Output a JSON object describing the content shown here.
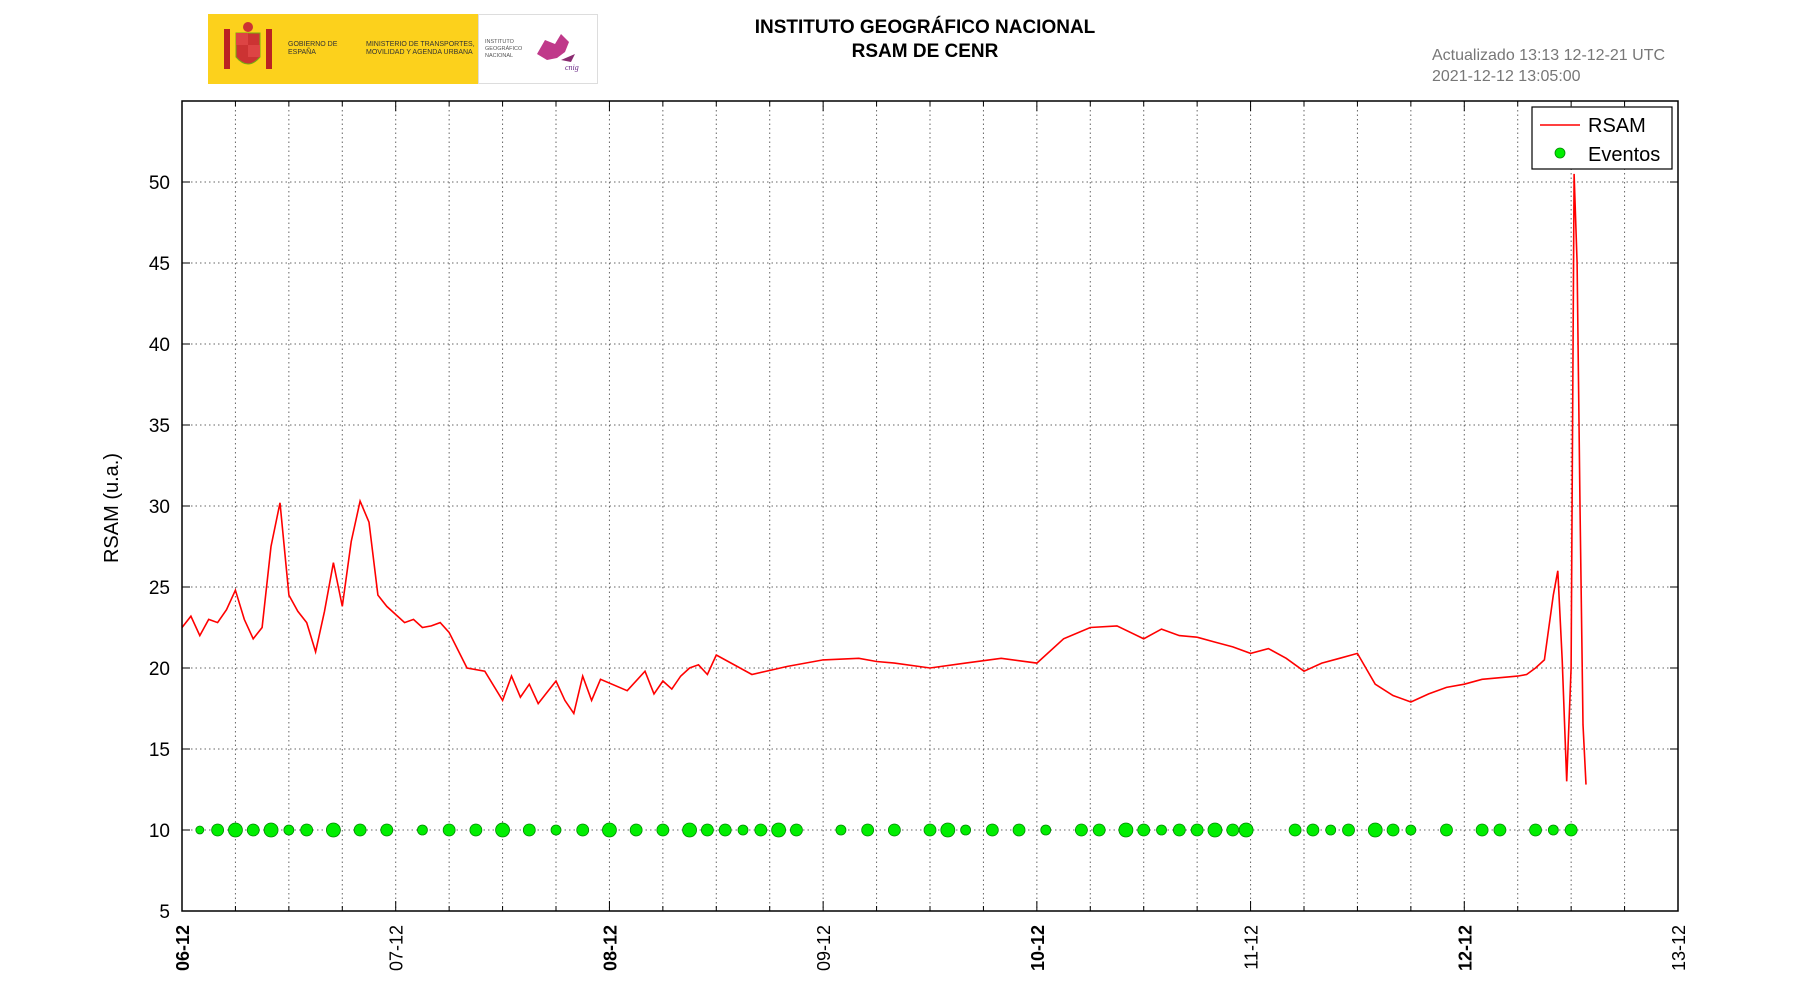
{
  "header": {
    "title_line1": "INSTITUTO GEOGRÁFICO NACIONAL",
    "title_line2": "RSAM DE CENR",
    "updated": "Actualizado 13:13 12-12-21 UTC",
    "timestamp": "2021-12-12 13:05:00"
  },
  "logos": {
    "gobierno": "GOBIERNO DE ESPAÑA",
    "ministerio": "MINISTERIO DE TRANSPORTES, MOVILIDAD Y AGENDA URBANA",
    "ign": "INSTITUTO GEOGRÁFICO NACIONAL",
    "ign_mark": "cnig"
  },
  "chart_data": {
    "type": "line",
    "ylabel": "RSAM (u.a.)",
    "ylim": [
      5,
      55
    ],
    "yticks": [
      5,
      10,
      15,
      20,
      25,
      30,
      35,
      40,
      45,
      50
    ],
    "xlim": [
      "2021-12-06T00:00",
      "2021-12-13T00:00"
    ],
    "xticks": [
      "06-12",
      "07-12",
      "08-12",
      "09-12",
      "10-12",
      "11-12",
      "12-12",
      "13-12"
    ],
    "xticks_bold": [
      true,
      false,
      true,
      false,
      true,
      false,
      true,
      false
    ],
    "grid": true,
    "legend_position": "top-right",
    "colors": {
      "rsam": "#ff0000",
      "eventos": "#00ee00",
      "eventos_edge": "#008800"
    },
    "series": [
      {
        "name": "RSAM",
        "x": [
          "2021-12-06T00:00",
          "2021-12-06T01:00",
          "2021-12-06T02:00",
          "2021-12-06T03:00",
          "2021-12-06T04:00",
          "2021-12-06T05:00",
          "2021-12-06T06:00",
          "2021-12-06T07:00",
          "2021-12-06T08:00",
          "2021-12-06T09:00",
          "2021-12-06T10:00",
          "2021-12-06T11:00",
          "2021-12-06T12:00",
          "2021-12-06T13:00",
          "2021-12-06T14:00",
          "2021-12-06T15:00",
          "2021-12-06T16:00",
          "2021-12-06T17:00",
          "2021-12-06T18:00",
          "2021-12-06T19:00",
          "2021-12-06T20:00",
          "2021-12-06T21:00",
          "2021-12-06T22:00",
          "2021-12-06T23:00",
          "2021-12-07T01:00",
          "2021-12-07T02:00",
          "2021-12-07T03:00",
          "2021-12-07T04:00",
          "2021-12-07T05:00",
          "2021-12-07T06:00",
          "2021-12-07T08:00",
          "2021-12-07T10:00",
          "2021-12-07T12:00",
          "2021-12-07T13:00",
          "2021-12-07T14:00",
          "2021-12-07T15:00",
          "2021-12-07T16:00",
          "2021-12-07T17:00",
          "2021-12-07T18:00",
          "2021-12-07T19:00",
          "2021-12-07T20:00",
          "2021-12-07T21:00",
          "2021-12-07T22:00",
          "2021-12-07T23:00",
          "2021-12-08T02:00",
          "2021-12-08T04:00",
          "2021-12-08T05:00",
          "2021-12-08T06:00",
          "2021-12-08T07:00",
          "2021-12-08T08:00",
          "2021-12-08T09:00",
          "2021-12-08T10:00",
          "2021-12-08T11:00",
          "2021-12-08T12:00",
          "2021-12-08T16:00",
          "2021-12-08T20:00",
          "2021-12-09T00:00",
          "2021-12-09T04:00",
          "2021-12-09T06:00",
          "2021-12-09T08:00",
          "2021-12-09T12:00",
          "2021-12-09T16:00",
          "2021-12-09T20:00",
          "2021-12-10T00:00",
          "2021-12-10T03:00",
          "2021-12-10T06:00",
          "2021-12-10T09:00",
          "2021-12-10T12:00",
          "2021-12-10T14:00",
          "2021-12-10T16:00",
          "2021-12-10T18:00",
          "2021-12-10T20:00",
          "2021-12-10T22:00",
          "2021-12-11T00:00",
          "2021-12-11T02:00",
          "2021-12-11T04:00",
          "2021-12-11T06:00",
          "2021-12-11T08:00",
          "2021-12-11T10:00",
          "2021-12-11T12:00",
          "2021-12-11T14:00",
          "2021-12-11T16:00",
          "2021-12-11T18:00",
          "2021-12-11T20:00",
          "2021-12-11T22:00",
          "2021-12-12T00:00",
          "2021-12-12T02:00",
          "2021-12-12T04:00",
          "2021-12-12T06:00",
          "2021-12-12T07:00",
          "2021-12-12T08:00",
          "2021-12-12T09:00",
          "2021-12-12T10:00",
          "2021-12-12T10:30",
          "2021-12-12T11:00",
          "2021-12-12T11:30",
          "2021-12-12T12:00",
          "2021-12-12T12:20",
          "2021-12-12T12:40",
          "2021-12-12T13:00",
          "2021-12-12T13:20",
          "2021-12-12T13:40"
        ],
        "y": [
          22.5,
          23.2,
          22.0,
          23.0,
          22.8,
          23.6,
          24.8,
          23.0,
          21.8,
          22.5,
          27.5,
          30.2,
          24.5,
          23.5,
          22.8,
          21.0,
          23.5,
          26.5,
          23.8,
          27.8,
          30.3,
          29.0,
          24.5,
          23.8,
          22.8,
          23.0,
          22.5,
          22.6,
          22.8,
          22.2,
          20.0,
          19.8,
          18.0,
          19.5,
          18.2,
          19.0,
          17.8,
          18.5,
          19.2,
          18.0,
          17.2,
          19.5,
          18.0,
          19.3,
          18.6,
          19.8,
          18.4,
          19.2,
          18.7,
          19.5,
          20.0,
          20.2,
          19.6,
          20.8,
          19.6,
          20.1,
          20.5,
          20.6,
          20.4,
          20.3,
          20.0,
          20.3,
          20.6,
          20.3,
          21.8,
          22.5,
          22.6,
          21.8,
          22.4,
          22.0,
          21.9,
          21.6,
          21.3,
          20.9,
          21.2,
          20.6,
          19.8,
          20.3,
          20.6,
          20.9,
          19.0,
          18.3,
          17.9,
          18.4,
          18.8,
          19.0,
          19.3,
          19.4,
          19.5,
          19.6,
          20.0,
          20.5,
          24.5,
          26.0,
          20.5,
          13.0,
          20.0,
          50.5,
          45.0,
          30.0,
          16.5,
          12.8
        ]
      },
      {
        "name": "Eventos",
        "x": [
          "2021-12-06T02:00",
          "2021-12-06T04:00",
          "2021-12-06T06:00",
          "2021-12-06T08:00",
          "2021-12-06T10:00",
          "2021-12-06T12:00",
          "2021-12-06T14:00",
          "2021-12-06T17:00",
          "2021-12-06T20:00",
          "2021-12-06T23:00",
          "2021-12-07T03:00",
          "2021-12-07T06:00",
          "2021-12-07T09:00",
          "2021-12-07T12:00",
          "2021-12-07T15:00",
          "2021-12-07T18:00",
          "2021-12-07T21:00",
          "2021-12-08T00:00",
          "2021-12-08T03:00",
          "2021-12-08T06:00",
          "2021-12-08T09:00",
          "2021-12-08T11:00",
          "2021-12-08T13:00",
          "2021-12-08T15:00",
          "2021-12-08T17:00",
          "2021-12-08T19:00",
          "2021-12-08T21:00",
          "2021-12-09T02:00",
          "2021-12-09T05:00",
          "2021-12-09T08:00",
          "2021-12-09T12:00",
          "2021-12-09T14:00",
          "2021-12-09T16:00",
          "2021-12-09T19:00",
          "2021-12-09T22:00",
          "2021-12-10T01:00",
          "2021-12-10T05:00",
          "2021-12-10T07:00",
          "2021-12-10T10:00",
          "2021-12-10T12:00",
          "2021-12-10T14:00",
          "2021-12-10T16:00",
          "2021-12-10T18:00",
          "2021-12-10T20:00",
          "2021-12-10T22:00",
          "2021-12-10T23:30",
          "2021-12-11T05:00",
          "2021-12-11T07:00",
          "2021-12-11T09:00",
          "2021-12-11T11:00",
          "2021-12-11T14:00",
          "2021-12-11T16:00",
          "2021-12-11T18:00",
          "2021-12-11T22:00",
          "2021-12-12T02:00",
          "2021-12-12T04:00",
          "2021-12-12T08:00",
          "2021-12-12T10:00",
          "2021-12-12T12:00"
        ],
        "y": [
          10,
          10,
          10,
          10,
          10,
          10,
          10,
          10,
          10,
          10,
          10,
          10,
          10,
          10,
          10,
          10,
          10,
          10,
          10,
          10,
          10,
          10,
          10,
          10,
          10,
          10,
          10,
          10,
          10,
          10,
          10,
          10,
          10,
          10,
          10,
          10,
          10,
          10,
          10,
          10,
          10,
          10,
          10,
          10,
          10,
          10,
          10,
          10,
          10,
          10,
          10,
          10,
          10,
          10,
          10,
          10,
          10,
          10,
          10
        ],
        "size": [
          4,
          6,
          7,
          6,
          7,
          5,
          6,
          7,
          6,
          6,
          5,
          6,
          6,
          7,
          6,
          5,
          6,
          7,
          6,
          6,
          7,
          6,
          6,
          5,
          6,
          7,
          6,
          5,
          6,
          6,
          6,
          7,
          5,
          6,
          6,
          5,
          6,
          6,
          7,
          6,
          5,
          6,
          6,
          7,
          6,
          7,
          6,
          6,
          5,
          6,
          7,
          6,
          5,
          6,
          6,
          6,
          6,
          5,
          6
        ]
      }
    ]
  }
}
